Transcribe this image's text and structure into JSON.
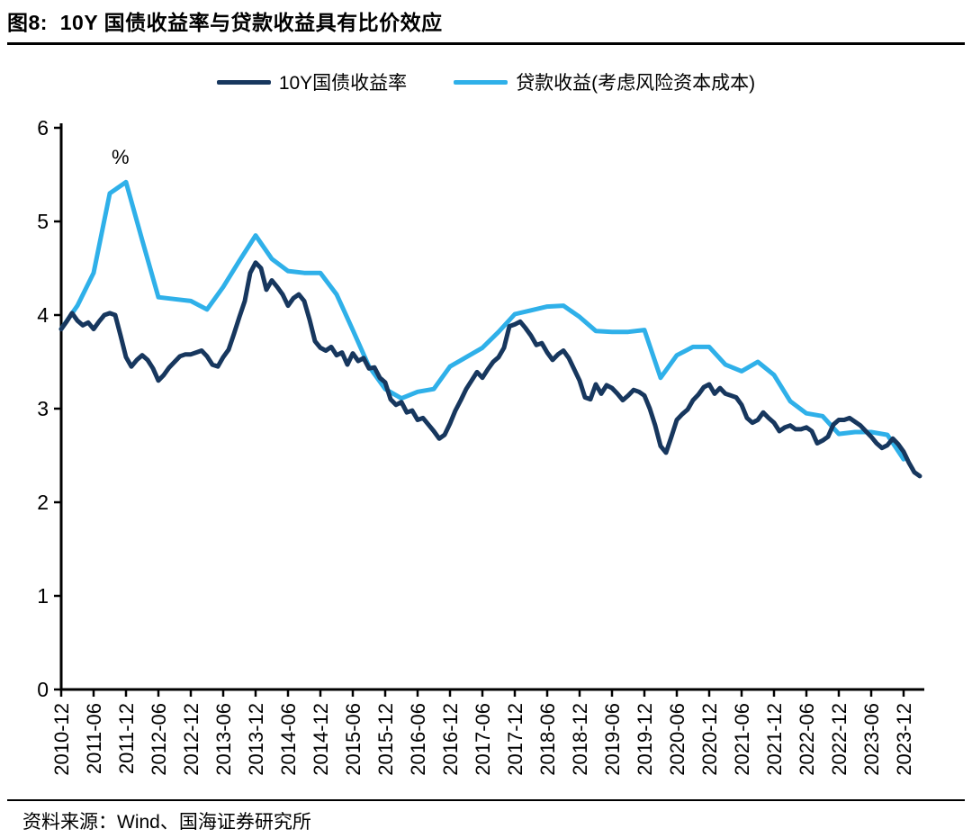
{
  "page": {
    "title": "图8:  10Y 国债收益率与贷款收益具有比价效应",
    "source": "资料来源：Wind、国海证券研究所"
  },
  "colors": {
    "navy": "#17375E",
    "sky": "#2FB0E9",
    "axis": "#000000"
  },
  "chart_data": {
    "type": "line",
    "title": "10Y 国债收益率与贷款收益具有比价效应",
    "unit_label": "%",
    "ylim": [
      0,
      6
    ],
    "yticks": [
      0,
      1,
      2,
      3,
      4,
      5,
      6
    ],
    "grid": false,
    "legend_position": "top",
    "x_tick_labels": [
      "2010-12",
      "2011-06",
      "2011-12",
      "2012-06",
      "2012-12",
      "2013-06",
      "2013-12",
      "2014-06",
      "2014-12",
      "2015-06",
      "2015-12",
      "2016-06",
      "2016-12",
      "2017-06",
      "2017-12",
      "2018-06",
      "2018-12",
      "2019-06",
      "2019-12",
      "2020-06",
      "2020-12",
      "2021-06",
      "2021-12",
      "2022-06",
      "2022-12",
      "2023-06",
      "2023-12"
    ],
    "months_per_tick": 6,
    "x_start": "2010-12",
    "series": [
      {
        "name": "贷款收益(考虑风险资本成本)",
        "color": "#2FB0E9",
        "start_month": 0,
        "month_step": 3,
        "values": [
          3.85,
          4.1,
          4.45,
          5.3,
          5.42,
          4.8,
          4.19,
          4.17,
          4.15,
          4.06,
          4.3,
          4.58,
          4.85,
          4.6,
          4.47,
          4.45,
          4.45,
          4.22,
          3.84,
          3.45,
          3.21,
          3.11,
          3.18,
          3.21,
          3.45,
          3.55,
          3.65,
          3.82,
          4.01,
          4.05,
          4.09,
          4.1,
          3.98,
          3.83,
          3.82,
          3.82,
          3.84,
          3.33,
          3.57,
          3.66,
          3.66,
          3.47,
          3.4,
          3.5,
          3.36,
          3.08,
          2.95,
          2.92,
          2.73,
          2.75,
          2.75,
          2.72,
          2.46
        ]
      },
      {
        "name": "10Y国债收益率",
        "color": "#17375E",
        "start_month": 0,
        "month_step": 1,
        "values": [
          3.85,
          3.93,
          4.02,
          3.94,
          3.89,
          3.92,
          3.85,
          3.93,
          4.0,
          4.02,
          4.0,
          3.78,
          3.55,
          3.45,
          3.52,
          3.57,
          3.52,
          3.43,
          3.3,
          3.36,
          3.44,
          3.5,
          3.56,
          3.58,
          3.58,
          3.6,
          3.62,
          3.56,
          3.47,
          3.45,
          3.55,
          3.63,
          3.8,
          3.98,
          4.15,
          4.45,
          4.56,
          4.5,
          4.27,
          4.37,
          4.3,
          4.22,
          4.1,
          4.18,
          4.22,
          4.15,
          3.95,
          3.72,
          3.65,
          3.62,
          3.66,
          3.57,
          3.6,
          3.47,
          3.59,
          3.51,
          3.54,
          3.43,
          3.44,
          3.33,
          3.28,
          3.1,
          3.04,
          3.07,
          2.96,
          2.98,
          2.88,
          2.9,
          2.83,
          2.76,
          2.68,
          2.72,
          2.84,
          2.98,
          3.09,
          3.21,
          3.3,
          3.39,
          3.33,
          3.42,
          3.5,
          3.55,
          3.65,
          3.88,
          3.9,
          3.93,
          3.86,
          3.78,
          3.68,
          3.7,
          3.6,
          3.52,
          3.58,
          3.62,
          3.54,
          3.42,
          3.3,
          3.12,
          3.1,
          3.26,
          3.16,
          3.25,
          3.22,
          3.16,
          3.09,
          3.14,
          3.2,
          3.18,
          3.14,
          3.0,
          2.82,
          2.6,
          2.53,
          2.7,
          2.88,
          2.94,
          2.99,
          3.09,
          3.15,
          3.23,
          3.26,
          3.16,
          3.22,
          3.16,
          3.14,
          3.12,
          3.04,
          2.9,
          2.85,
          2.88,
          2.96,
          2.9,
          2.85,
          2.76,
          2.8,
          2.82,
          2.78,
          2.78,
          2.8,
          2.76,
          2.63,
          2.66,
          2.7,
          2.83,
          2.88,
          2.88,
          2.9,
          2.86,
          2.82,
          2.76,
          2.7,
          2.63,
          2.58,
          2.61,
          2.68,
          2.62,
          2.54,
          2.42,
          2.32,
          2.28
        ]
      }
    ]
  }
}
